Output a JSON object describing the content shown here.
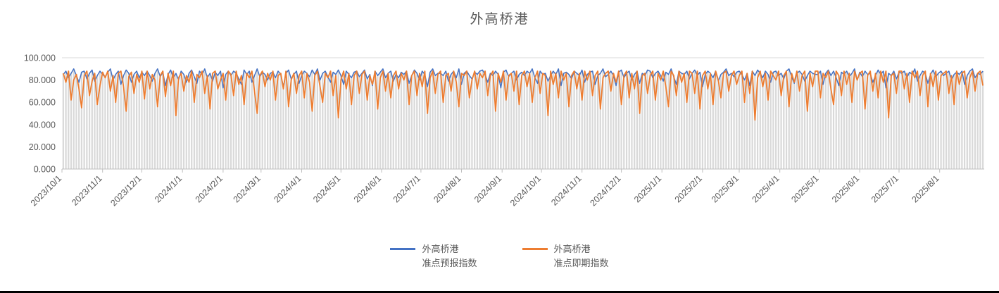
{
  "title": "外高桥港",
  "chart_data": {
    "type": "line",
    "title": "外高桥港",
    "xlabel": "",
    "ylabel": "",
    "ylim": [
      0,
      100
    ],
    "grid": "top-line-only",
    "legend_position": "bottom-center",
    "y_ticks": [
      "0.000",
      "20.000",
      "40.000",
      "60.000",
      "80.000",
      "100.000"
    ],
    "x_ticks": [
      {
        "label": "2023/10/1",
        "day": 0
      },
      {
        "label": "2023/11/1",
        "day": 31
      },
      {
        "label": "2023/12/1",
        "day": 61
      },
      {
        "label": "2024/1/1",
        "day": 92
      },
      {
        "label": "2024/2/1",
        "day": 123
      },
      {
        "label": "2024/3/1",
        "day": 152
      },
      {
        "label": "2024/4/1",
        "day": 183
      },
      {
        "label": "2024/5/1",
        "day": 213
      },
      {
        "label": "2024/6/1",
        "day": 244
      },
      {
        "label": "2024/7/1",
        "day": 274
      },
      {
        "label": "2024/8/1",
        "day": 305
      },
      {
        "label": "2024/9/1",
        "day": 336
      },
      {
        "label": "2024/10/1",
        "day": 366
      },
      {
        "label": "2024/11/1",
        "day": 397
      },
      {
        "label": "2024/12/1",
        "day": 427
      },
      {
        "label": "2025/1/1",
        "day": 458
      },
      {
        "label": "2025/2/1",
        "day": 489
      },
      {
        "label": "2025/3/1",
        "day": 517
      },
      {
        "label": "2025/4/1",
        "day": 548
      },
      {
        "label": "2025/5/1",
        "day": 578
      },
      {
        "label": "2025/6/1",
        "day": 609
      },
      {
        "label": "2025/7/1",
        "day": 639
      },
      {
        "label": "2025/8/1",
        "day": 670
      }
    ],
    "total_days": 704,
    "sample_interval_days": 2,
    "axis_color": "#bfbfbf",
    "text_color": "#595959",
    "bars": {
      "color": "#d9d9d9"
    },
    "series": [
      {
        "name": "外高桥港准点预报指数",
        "color": "#4472c4",
        "values": [
          85,
          88,
          82,
          86,
          90,
          84,
          78,
          87,
          88,
          81,
          86,
          89,
          79,
          84,
          88,
          85,
          83,
          87,
          90,
          80,
          85,
          88,
          76,
          84,
          89,
          86,
          78,
          85,
          88,
          82,
          87,
          84,
          88,
          84,
          79,
          86,
          90,
          83,
          87,
          75,
          85,
          89,
          82,
          86,
          80,
          88,
          85,
          78,
          86,
          89,
          83,
          77,
          88,
          85,
          90,
          82,
          86,
          79,
          87,
          84,
          88,
          73,
          85,
          88,
          84,
          88,
          86,
          81,
          76,
          89,
          85,
          88,
          78,
          84,
          90,
          83,
          87,
          85,
          80,
          86,
          87,
          82,
          88,
          85,
          74,
          86,
          89,
          81,
          85,
          88,
          77,
          84,
          88,
          86,
          83,
          89,
          85,
          90,
          80,
          86,
          88,
          83,
          78,
          87,
          85,
          89,
          84,
          76,
          88,
          85,
          82,
          87,
          88,
          83,
          86,
          89,
          81,
          85,
          75,
          88,
          84,
          87,
          90,
          82,
          86,
          88,
          79,
          85,
          82,
          87,
          85,
          88,
          77,
          84,
          89,
          86,
          80,
          88,
          85,
          74,
          87,
          90,
          84,
          86,
          86,
          84,
          88,
          79,
          85,
          88,
          82,
          90,
          76,
          86,
          88,
          84,
          81,
          87,
          85,
          88,
          89,
          85,
          78,
          86,
          84,
          88,
          85,
          73,
          87,
          89,
          83,
          86,
          88,
          80,
          85,
          87,
          84,
          88,
          86,
          90,
          82,
          77,
          88,
          85,
          86,
          79,
          84,
          88,
          85,
          90,
          75,
          86,
          87,
          85,
          81,
          88,
          86,
          84,
          89,
          78,
          85,
          87,
          88,
          76,
          84,
          86,
          90,
          83,
          85,
          88,
          84,
          75,
          87,
          89,
          82,
          86,
          88,
          80,
          85,
          88,
          77,
          86,
          84,
          89,
          88,
          82,
          86,
          88,
          84,
          79,
          87,
          85,
          90,
          83,
          76,
          88,
          86,
          85,
          88,
          81,
          86,
          89,
          84,
          87,
          74,
          85,
          88,
          86,
          82,
          88,
          79,
          85,
          87,
          90,
          84,
          86,
          83,
          87,
          88,
          85,
          80,
          86,
          75,
          88,
          84,
          89,
          86,
          82,
          88,
          85,
          78,
          87,
          88,
          84,
          86,
          81,
          88,
          90,
          83,
          77,
          86,
          88,
          85,
          79,
          84,
          88,
          86,
          85,
          85,
          88,
          76,
          86,
          89,
          84,
          88,
          82,
          75,
          87,
          85,
          88,
          83,
          86,
          90,
          80,
          87,
          83,
          88,
          85,
          86,
          78,
          84,
          89,
          85,
          88,
          73,
          86,
          84,
          88,
          81,
          87,
          86,
          88,
          82,
          87,
          85,
          90,
          79,
          84,
          88,
          86,
          77,
          85,
          89,
          83,
          86,
          88,
          84,
          86,
          88,
          80,
          85,
          87,
          85,
          88,
          76,
          84,
          88,
          90,
          82,
          86,
          85,
          88
        ]
      },
      {
        "name": "外高桥港准点即期指数",
        "color": "#ed7d31",
        "values": [
          86,
          78,
          88,
          62,
          80,
          85,
          72,
          55,
          84,
          88,
          66,
          79,
          86,
          58,
          75,
          87,
          82,
          88,
          70,
          84,
          60,
          86,
          88,
          74,
          52,
          83,
          87,
          68,
          85,
          78,
          88,
          63,
          88,
          72,
          85,
          80,
          56,
          84,
          88,
          65,
          86,
          75,
          88,
          48,
          82,
          86,
          70,
          84,
          78,
          88,
          60,
          85,
          82,
          88,
          68,
          84,
          54,
          86,
          88,
          72,
          80,
          86,
          62,
          88,
          85,
          66,
          88,
          76,
          84,
          58,
          86,
          82,
          88,
          70,
          50,
          84,
          88,
          74,
          86,
          80,
          88,
          62,
          84,
          86,
          72,
          88,
          56,
          80,
          86,
          68,
          84,
          88,
          64,
          86,
          78,
          52,
          84,
          88,
          74,
          60,
          86,
          82,
          88,
          66,
          84,
          46,
          80,
          88,
          72,
          86,
          58,
          84,
          88,
          68,
          85,
          88,
          62,
          84,
          76,
          88,
          54,
          82,
          88,
          70,
          86,
          64,
          84,
          88,
          72,
          86,
          80,
          88,
          58,
          84,
          88,
          66,
          86,
          74,
          88,
          50,
          82,
          88,
          68,
          85,
          88,
          60,
          84,
          86,
          70,
          88,
          78,
          56,
          86,
          84,
          88,
          64,
          80,
          88,
          72,
          86,
          82,
          88,
          66,
          84,
          88,
          52,
          86,
          78,
          88,
          62,
          84,
          86,
          70,
          88,
          58,
          84,
          88,
          74,
          86,
          60,
          82,
          88,
          68,
          86,
          84,
          48,
          88,
          76,
          86,
          64,
          88,
          80,
          86,
          56,
          84,
          88,
          72,
          86,
          62,
          88,
          80,
          88,
          66,
          84,
          88,
          54,
          82,
          86,
          88,
          70,
          86,
          78,
          88,
          58,
          84,
          88,
          64,
          86,
          72,
          88,
          50,
          84,
          86,
          68,
          84,
          88,
          62,
          86,
          80,
          88,
          74,
          56,
          88,
          84,
          66,
          88,
          78,
          86,
          60,
          88,
          86,
          68,
          88,
          54,
          84,
          88,
          72,
          86,
          58,
          88,
          80,
          64,
          86,
          88,
          70,
          84,
          88,
          76,
          84,
          88,
          60,
          86,
          68,
          88,
          44,
          82,
          88,
          74,
          86,
          62,
          88,
          84,
          80,
          88,
          66,
          84,
          88,
          56,
          86,
          78,
          88,
          70,
          84,
          88,
          52,
          86,
          74,
          88,
          88,
          64,
          86,
          82,
          88,
          72,
          58,
          88,
          84,
          66,
          88,
          76,
          86,
          60,
          88,
          80,
          86,
          88,
          54,
          84,
          88,
          70,
          86,
          64,
          88,
          78,
          88,
          46,
          84,
          86,
          68,
          88,
          88,
          72,
          86,
          60,
          88,
          82,
          88,
          66,
          84,
          88,
          56,
          86,
          74,
          88,
          62,
          84,
          86,
          88,
          68,
          84,
          58,
          88,
          76,
          86,
          88,
          64,
          82,
          88,
          70,
          86,
          88,
          75
        ]
      }
    ],
    "legend": [
      {
        "label_line1": "外高桥港",
        "label_line2": "准点预报指数",
        "color": "#4472c4"
      },
      {
        "label_line1": "外高桥港",
        "label_line2": "准点即期指数",
        "color": "#ed7d31"
      }
    ]
  }
}
